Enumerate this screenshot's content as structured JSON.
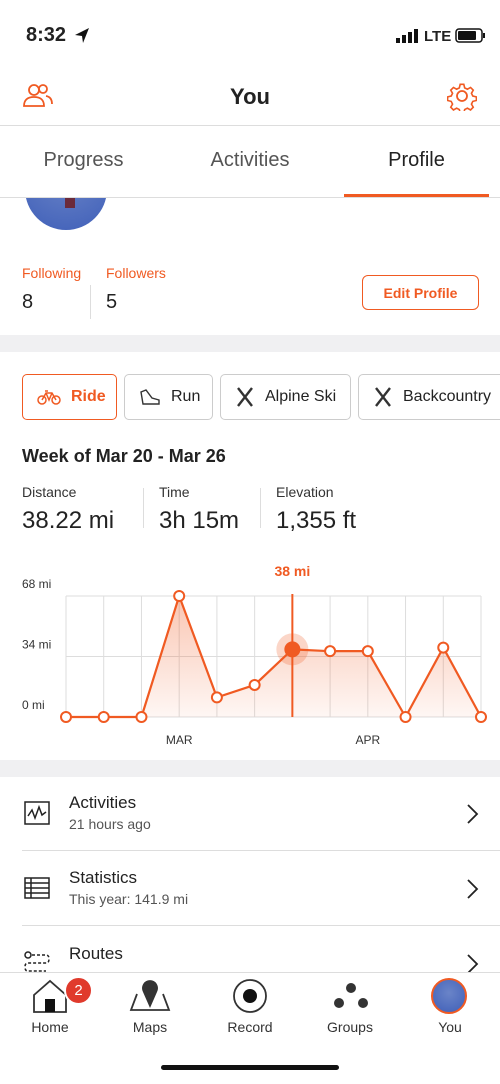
{
  "status": {
    "time": "8:32",
    "network": "LTE"
  },
  "header": {
    "title": "You"
  },
  "tabs": [
    "Progress",
    "Activities",
    "Profile"
  ],
  "profile": {
    "following_label": "Following",
    "following": 8,
    "followers_label": "Followers",
    "followers": 5,
    "edit_button": "Edit Profile"
  },
  "sports": [
    "Ride",
    "Run",
    "Alpine Ski",
    "Backcountry"
  ],
  "week": {
    "title": "Week of Mar 20 - Mar 26",
    "stats": [
      {
        "label": "Distance",
        "value": "38.22 mi"
      },
      {
        "label": "Time",
        "value": "3h 15m"
      },
      {
        "label": "Elevation",
        "value": "1,355 ft"
      }
    ]
  },
  "chart": {
    "type": "line",
    "categories": [
      null,
      null,
      null,
      "MAR",
      null,
      null,
      null,
      null,
      "APR",
      null,
      null,
      null
    ],
    "values": [
      0,
      0,
      0,
      68,
      11,
      18,
      38,
      37,
      37,
      0,
      39,
      0
    ],
    "color": "#f05a22",
    "ylim": [
      0,
      68
    ],
    "yticks": [
      {
        "value": 0,
        "label": "0 mi"
      },
      {
        "value": 34,
        "label": "34 mi"
      },
      {
        "value": 68,
        "label": "68 mi"
      }
    ],
    "highlight_index": 6,
    "highlight_label": "38 mi"
  },
  "menu": [
    {
      "title": "Activities",
      "subtitle": "21 hours ago"
    },
    {
      "title": "Statistics",
      "subtitle": "This year: 141.9 mi"
    },
    {
      "title": "Routes"
    }
  ],
  "nav": [
    {
      "label": "Home",
      "badge": 2
    },
    {
      "label": "Maps"
    },
    {
      "label": "Record"
    },
    {
      "label": "Groups"
    },
    {
      "label": "You"
    }
  ]
}
